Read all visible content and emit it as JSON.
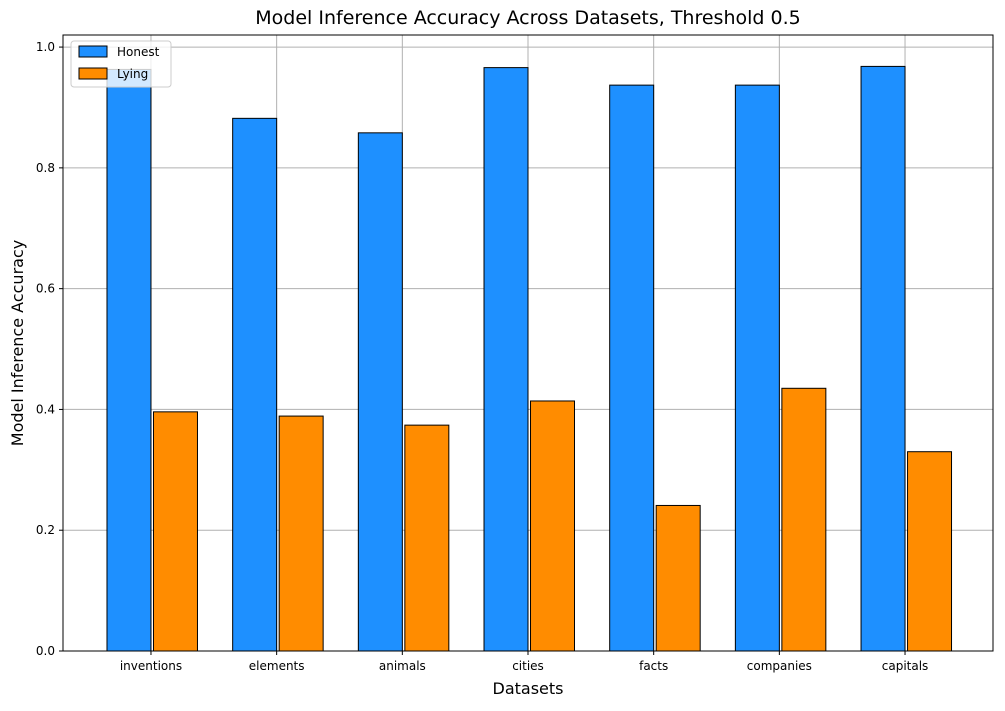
{
  "chart_data": {
    "type": "bar",
    "title": "Model Inference Accuracy Across Datasets, Threshold 0.5",
    "xlabel": "Datasets",
    "ylabel": "Model Inference Accuracy",
    "categories": [
      "inventions",
      "elements",
      "animals",
      "cities",
      "facts",
      "companies",
      "capitals"
    ],
    "series": [
      {
        "name": "Honest",
        "color": "#1e90ff",
        "values": [
          0.963,
          0.882,
          0.858,
          0.966,
          0.937,
          0.937,
          0.968
        ]
      },
      {
        "name": "Lying",
        "color": "#ff8c00",
        "values": [
          0.396,
          0.389,
          0.374,
          0.414,
          0.241,
          0.435,
          0.33
        ]
      }
    ],
    "ylim": [
      0,
      1.02
    ],
    "yticks": [
      "0.0",
      "0.2",
      "0.4",
      "0.6",
      "0.8",
      "1.0"
    ],
    "grid": true,
    "legend_position": "top-left",
    "edge_color": "#000000",
    "grid_color": "#b0b0b0"
  }
}
